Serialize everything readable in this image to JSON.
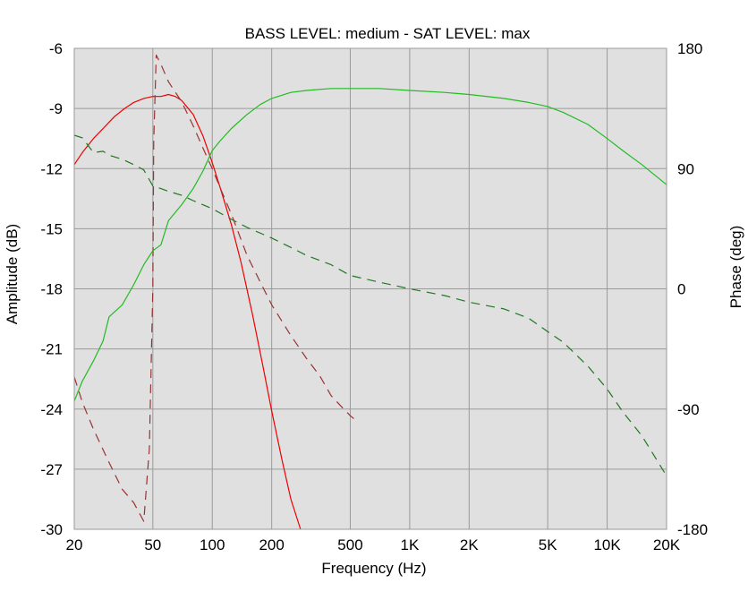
{
  "chart_data": {
    "type": "line",
    "title": "BASS LEVEL: medium - SAT LEVEL: max",
    "xlabel": "Frequency (Hz)",
    "ylabel": "Amplitude (dB)",
    "y2label": "Phase (deg)",
    "x_scale": "log",
    "xlim": [
      20,
      20000
    ],
    "ylim": [
      -30,
      -6
    ],
    "y2lim": [
      -180,
      180
    ],
    "grid": true,
    "x_ticks": [
      {
        "value": 20,
        "label": "20"
      },
      {
        "value": 50,
        "label": "50"
      },
      {
        "value": 100,
        "label": "100"
      },
      {
        "value": 200,
        "label": "200"
      },
      {
        "value": 500,
        "label": "500"
      },
      {
        "value": 1000,
        "label": "1K"
      },
      {
        "value": 2000,
        "label": "2K"
      },
      {
        "value": 5000,
        "label": "5K"
      },
      {
        "value": 10000,
        "label": "10K"
      },
      {
        "value": 20000,
        "label": "20K"
      }
    ],
    "y_ticks": [
      -6,
      -9,
      -12,
      -15,
      -18,
      -21,
      -24,
      -27,
      -30
    ],
    "y2_ticks": [
      180,
      90,
      0,
      -90,
      -180
    ],
    "series": [
      {
        "axis": "left",
        "color": "#ee0000",
        "dash": false,
        "x": [
          20,
          22,
          25,
          28,
          32,
          36,
          40,
          45,
          50,
          55,
          60,
          65,
          70,
          80,
          90,
          100,
          110,
          125,
          140,
          160,
          180,
          200,
          225,
          250,
          280
        ],
        "y": [
          -11.8,
          -11.2,
          -10.5,
          -10.0,
          -9.4,
          -9.0,
          -8.7,
          -8.5,
          -8.4,
          -8.4,
          -8.3,
          -8.4,
          -8.6,
          -9.3,
          -10.4,
          -11.7,
          -13.0,
          -14.8,
          -16.7,
          -19.3,
          -21.8,
          -24.1,
          -26.5,
          -28.5,
          -30.0
        ]
      },
      {
        "axis": "right",
        "color": "#993333",
        "dash": true,
        "x": [
          20,
          22,
          25,
          30,
          35,
          40,
          45,
          48,
          50,
          50.5,
          52,
          55,
          60,
          70,
          80,
          90,
          100,
          110,
          125,
          150,
          175,
          200,
          250,
          300,
          350,
          400,
          450,
          500,
          550
        ],
        "y": [
          -66,
          -85,
          -105,
          -130,
          -150,
          -160,
          -174,
          -120,
          0,
          110,
          175,
          168,
          155,
          140,
          122,
          105,
          90,
          75,
          56,
          25,
          5,
          -12,
          -35,
          -52,
          -65,
          -80,
          -88,
          -95,
          -100
        ]
      },
      {
        "axis": "left",
        "color": "#22bb22",
        "dash": false,
        "x": [
          20,
          22,
          25,
          28,
          30,
          35,
          40,
          45,
          50,
          55,
          60,
          70,
          80,
          90,
          100,
          110,
          125,
          150,
          175,
          200,
          250,
          300,
          400,
          500,
          700,
          1000,
          1500,
          2000,
          3000,
          4000,
          5000,
          6000,
          8000,
          10000,
          12000,
          15000,
          20000
        ],
        "y": [
          -23.6,
          -22.6,
          -21.6,
          -20.6,
          -19.4,
          -18.8,
          -17.8,
          -16.8,
          -16.1,
          -15.8,
          -14.6,
          -13.8,
          -13.0,
          -12.1,
          -11.1,
          -10.6,
          -10.0,
          -9.3,
          -8.8,
          -8.5,
          -8.2,
          -8.1,
          -8.0,
          -8.0,
          -8.0,
          -8.1,
          -8.2,
          -8.3,
          -8.5,
          -8.7,
          -8.9,
          -9.2,
          -9.8,
          -10.5,
          -11.1,
          -11.8,
          -12.8
        ]
      },
      {
        "axis": "right",
        "color": "#227722",
        "dash": true,
        "x": [
          20,
          22,
          25,
          28,
          30,
          35,
          40,
          45,
          50,
          55,
          60,
          70,
          80,
          100,
          125,
          150,
          200,
          250,
          300,
          400,
          500,
          700,
          1000,
          1500,
          2000,
          3000,
          4000,
          5000,
          6000,
          8000,
          10000,
          12000,
          15000,
          20000
        ],
        "y": [
          115,
          113,
          102,
          103,
          100,
          97,
          93,
          89,
          77,
          75,
          73,
          70,
          66,
          60,
          52,
          46,
          38,
          31,
          25,
          18,
          10,
          5,
          0,
          -5,
          -10,
          -15,
          -22,
          -32,
          -40,
          -58,
          -75,
          -92,
          -110,
          -140
        ]
      }
    ]
  }
}
